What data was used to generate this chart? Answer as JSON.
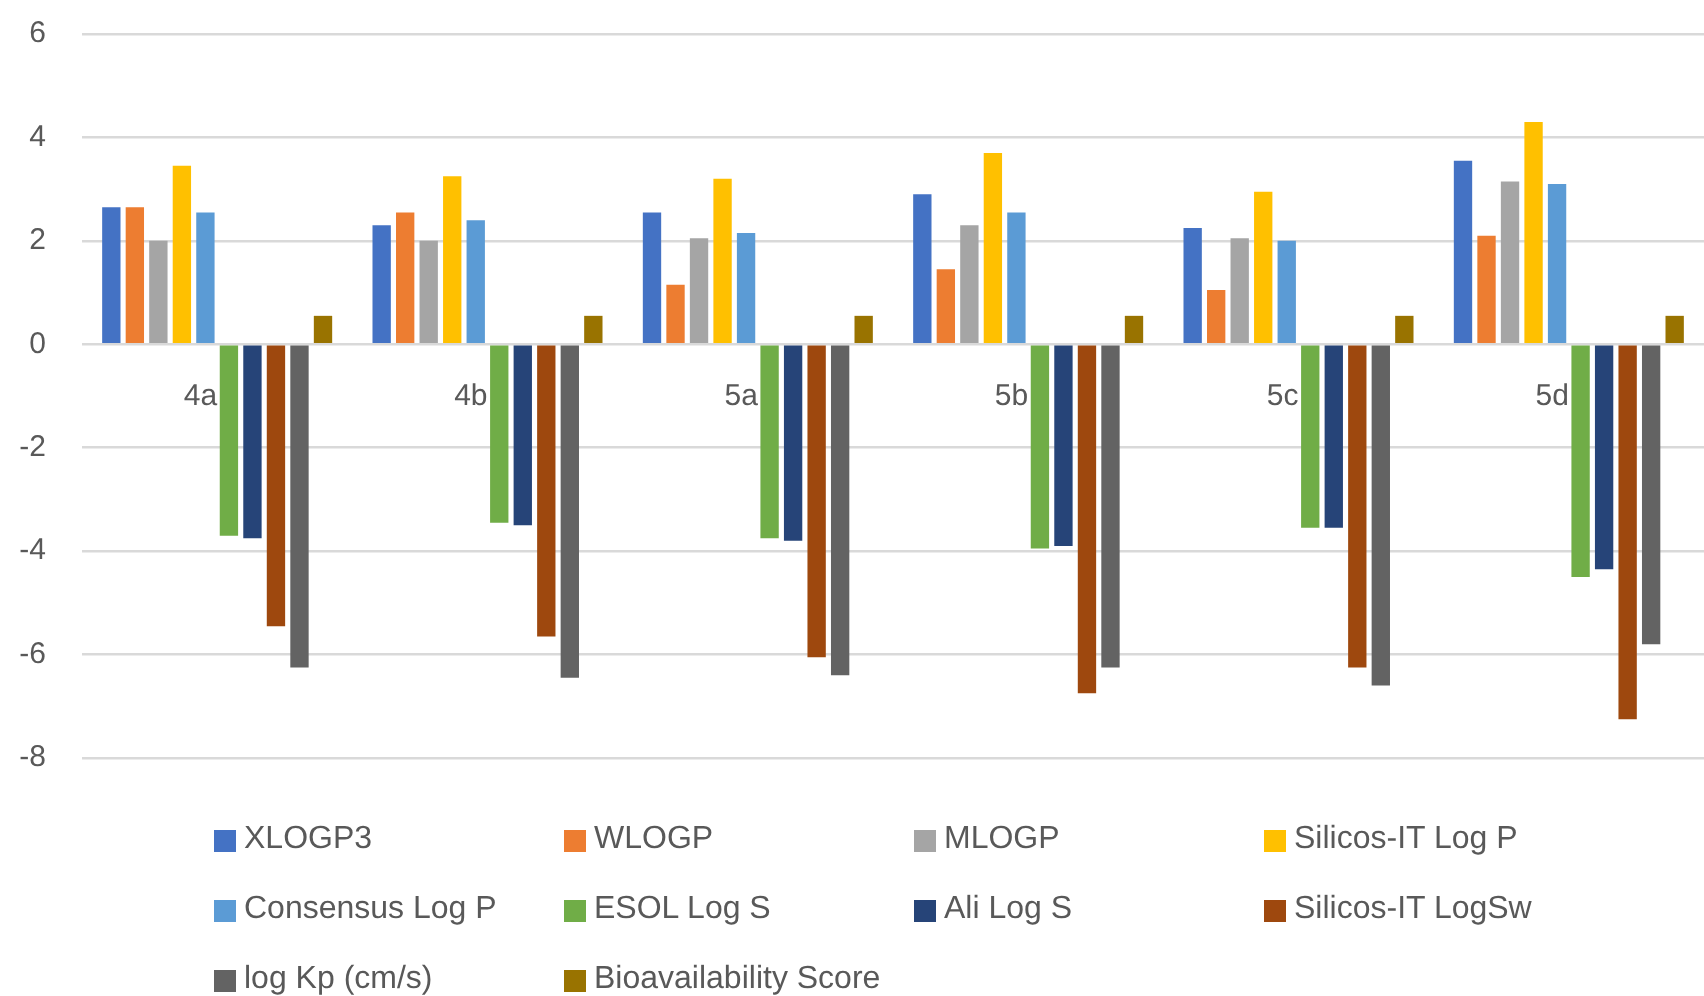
{
  "chart_data": {
    "type": "bar",
    "categories": [
      "4a",
      "4b",
      "5a",
      "5b",
      "5c",
      "5d"
    ],
    "series": [
      {
        "name": "XLOGP3",
        "color": "#4472c4",
        "values": [
          2.65,
          2.3,
          2.55,
          2.9,
          2.25,
          3.55
        ]
      },
      {
        "name": "WLOGP",
        "color": "#ed7d31",
        "values": [
          2.65,
          2.55,
          1.15,
          1.45,
          1.05,
          2.1
        ]
      },
      {
        "name": "MLOGP",
        "color": "#a5a5a5",
        "values": [
          2.0,
          2.0,
          2.05,
          2.3,
          2.05,
          3.15
        ]
      },
      {
        "name": "Silicos-IT Log P",
        "color": "#ffc000",
        "values": [
          3.45,
          3.25,
          3.2,
          3.7,
          2.95,
          4.3
        ]
      },
      {
        "name": "Consensus Log P",
        "color": "#5b9bd5",
        "values": [
          2.55,
          2.4,
          2.15,
          2.55,
          2.0,
          3.1
        ]
      },
      {
        "name": "ESOL Log S",
        "color": "#70ad47",
        "values": [
          -3.7,
          -3.45,
          -3.75,
          -3.95,
          -3.55,
          -4.5
        ]
      },
      {
        "name": "Ali Log S",
        "color": "#264478",
        "values": [
          -3.75,
          -3.5,
          -3.8,
          -3.9,
          -3.55,
          -4.35
        ]
      },
      {
        "name": "Silicos-IT LogSw",
        "color": "#9e480e",
        "values": [
          -5.45,
          -5.65,
          -6.05,
          -6.75,
          -6.25,
          -7.25
        ]
      },
      {
        "name": "log Kp (cm/s)",
        "color": "#636363",
        "values": [
          -6.25,
          -6.45,
          -6.4,
          -6.25,
          -6.6,
          -5.8
        ]
      },
      {
        "name": "Bioavailability Score",
        "color": "#997300",
        "values": [
          0.55,
          0.55,
          0.55,
          0.55,
          0.55,
          0.55
        ]
      }
    ],
    "ylim": [
      -8,
      6
    ],
    "yticks": [
      -8,
      -6,
      -4,
      -2,
      0,
      2,
      4,
      6
    ],
    "grid": "y",
    "legend": "bottom"
  }
}
